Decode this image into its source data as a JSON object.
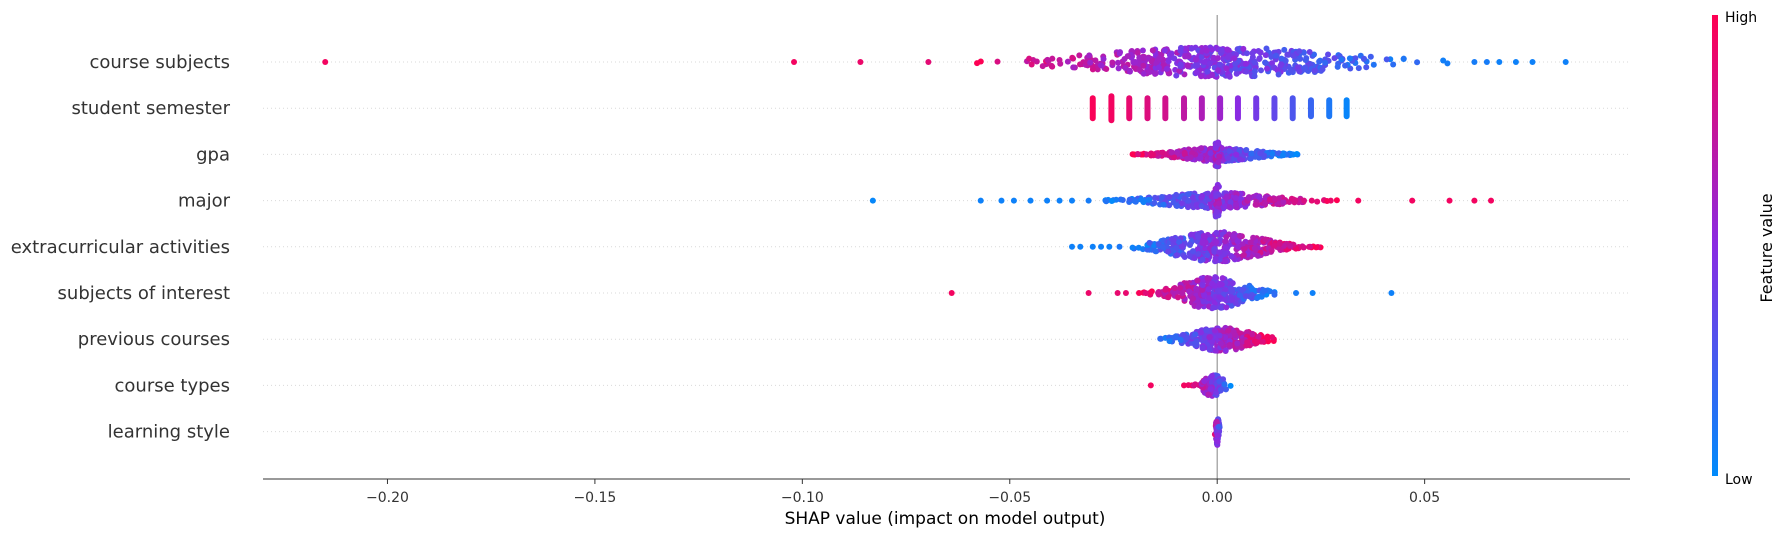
{
  "chart_data": {
    "type": "scatter",
    "subtype": "shap-beeswarm",
    "xlabel": "SHAP value (impact on model output)",
    "xlim": [
      -0.23,
      0.0995
    ],
    "xticks": [
      -0.2,
      -0.15,
      -0.1,
      -0.05,
      0.0,
      0.05
    ],
    "xtick_labels": [
      "−0.20",
      "−0.15",
      "−0.10",
      "−0.05",
      "0.00",
      "0.05"
    ],
    "zero_line": 0.0,
    "grid": "dotted-horizontal-per-feature",
    "colorbar": {
      "title": "Feature value",
      "high_label": "High",
      "low_label": "Low",
      "high_color": "#ff0052",
      "mid_color": "#8a2be2",
      "low_color": "#008bfb"
    },
    "features": [
      {
        "name": "course subjects",
        "outliers": [
          {
            "x": -0.215,
            "v": 0.95
          },
          {
            "x": -0.102,
            "v": 0.95
          },
          {
            "x": -0.086,
            "v": 0.92
          },
          {
            "x": 0.068,
            "v": 0.05
          },
          {
            "x": 0.072,
            "v": 0.05
          },
          {
            "x": 0.076,
            "v": 0.05
          },
          {
            "x": 0.084,
            "v": 0.05
          },
          {
            "x": 0.062,
            "v": 0.08
          },
          {
            "x": 0.065,
            "v": 0.08
          }
        ],
        "clusters": [
          {
            "center": 0.0,
            "xmin": -0.07,
            "xmax": 0.06,
            "spread": 0.02,
            "count": 500,
            "maxHeight": 15,
            "gradient": "decreasing"
          }
        ]
      },
      {
        "name": "student semester",
        "discrete": {
          "x": [
            -0.03,
            -0.0255,
            -0.0212,
            -0.0168,
            -0.0125,
            -0.008,
            -0.0037,
            0.0007,
            0.005,
            0.0094,
            0.0138,
            0.0182,
            0.0226,
            0.027,
            0.0312
          ],
          "v": [
            0.98,
            0.95,
            0.9,
            0.85,
            0.8,
            0.72,
            0.65,
            0.58,
            0.5,
            0.42,
            0.35,
            0.28,
            0.2,
            0.1,
            0.03
          ],
          "halfHeight": [
            13,
            15,
            13,
            13,
            13,
            13,
            13,
            13,
            13,
            13,
            13,
            13,
            11,
            11,
            11
          ]
        }
      },
      {
        "name": "gpa",
        "clusters": [
          {
            "center": 0.0,
            "xmin": -0.021,
            "xmax": 0.02,
            "spread": 0.012,
            "count": 320,
            "maxHeight": 7,
            "gradient": "decreasing",
            "spike": 12
          }
        ]
      },
      {
        "name": "major",
        "outliers": [
          {
            "x": -0.083,
            "v": 0.02
          },
          {
            "x": -0.057,
            "v": 0.05
          },
          {
            "x": -0.052,
            "v": 0.05
          },
          {
            "x": -0.049,
            "v": 0.05
          },
          {
            "x": -0.045,
            "v": 0.05
          },
          {
            "x": -0.041,
            "v": 0.05
          },
          {
            "x": -0.038,
            "v": 0.05
          },
          {
            "x": -0.035,
            "v": 0.05
          },
          {
            "x": -0.031,
            "v": 0.08
          },
          {
            "x": 0.034,
            "v": 0.95
          },
          {
            "x": 0.047,
            "v": 0.95
          },
          {
            "x": 0.056,
            "v": 0.95
          },
          {
            "x": 0.062,
            "v": 0.95
          },
          {
            "x": 0.066,
            "v": 0.95
          }
        ],
        "clusters": [
          {
            "center": 0.0,
            "xmin": -0.028,
            "xmax": 0.031,
            "spread": 0.012,
            "count": 300,
            "maxHeight": 8,
            "gradient": "increasing",
            "spike": 16
          }
        ]
      },
      {
        "name": "extracurricular activities",
        "outliers": [
          {
            "x": -0.035,
            "v": 0.05
          },
          {
            "x": -0.033,
            "v": 0.05
          },
          {
            "x": -0.03,
            "v": 0.05
          },
          {
            "x": -0.028,
            "v": 0.05
          },
          {
            "x": -0.026,
            "v": 0.05
          }
        ],
        "clusters": [
          {
            "center": 0.0,
            "xmin": -0.024,
            "xmax": 0.025,
            "spread": 0.011,
            "count": 380,
            "maxHeight": 15,
            "gradient": "increasing"
          }
        ]
      },
      {
        "name": "subjects of interest",
        "outliers": [
          {
            "x": -0.064,
            "v": 0.95
          },
          {
            "x": -0.031,
            "v": 0.92
          },
          {
            "x": -0.024,
            "v": 0.9
          },
          {
            "x": -0.022,
            "v": 0.9
          },
          {
            "x": 0.019,
            "v": 0.08
          },
          {
            "x": 0.023,
            "v": 0.05
          },
          {
            "x": 0.042,
            "v": 0.05
          }
        ],
        "clusters": [
          {
            "center": -0.001,
            "xmin": -0.019,
            "xmax": 0.016,
            "spread": 0.007,
            "count": 300,
            "maxHeight": 16,
            "gradient": "decreasing"
          }
        ]
      },
      {
        "name": "previous courses",
        "clusters": [
          {
            "center": 0.001,
            "xmin": -0.017,
            "xmax": 0.015,
            "spread": 0.006,
            "count": 260,
            "maxHeight": 12,
            "gradient": "increasing"
          }
        ]
      },
      {
        "name": "course types",
        "outliers": [
          {
            "x": -0.016,
            "v": 0.95
          },
          {
            "x": -0.008,
            "v": 0.95
          }
        ],
        "clusters": [
          {
            "center": -0.001,
            "xmin": -0.007,
            "xmax": 0.004,
            "spread": 0.002,
            "count": 110,
            "maxHeight": 11,
            "gradient": "decreasing"
          }
        ]
      },
      {
        "name": "learning style",
        "clusters": [
          {
            "center": 0.0,
            "xmin": -0.001,
            "xmax": 0.001,
            "spread": 0.0003,
            "count": 60,
            "maxHeight": 15,
            "gradient": "decreasing"
          }
        ]
      }
    ]
  }
}
